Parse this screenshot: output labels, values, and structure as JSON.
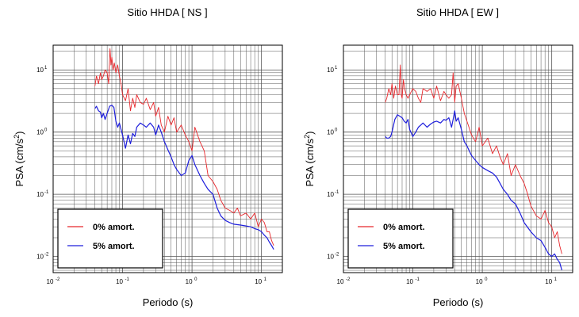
{
  "colors": {
    "undamped": "#e8262b",
    "damped": "#1e1edc",
    "grid": "#555555",
    "frame": "#000000"
  },
  "chart_data": [
    {
      "type": "line",
      "title": "Sitio HHDA [ NS ]",
      "xlabel": "Periodo (s)",
      "ylabel": "PSA (cm/s²)",
      "x_scale": "log",
      "y_scale": "log",
      "xlim": [
        0.01,
        20
      ],
      "ylim": [
        0.0055,
        25
      ],
      "x_ticks": [
        {
          "v": 0.01,
          "exp": "-2"
        },
        {
          "v": 0.1,
          "exp": "-1"
        },
        {
          "v": 1,
          "exp": "0"
        },
        {
          "v": 10,
          "exp": "1"
        }
      ],
      "y_ticks": [
        {
          "v": 0.01,
          "exp": "-2"
        },
        {
          "v": 0.1,
          "exp": "-1"
        },
        {
          "v": 1,
          "exp": "0"
        },
        {
          "v": 10,
          "exp": "1"
        }
      ],
      "grid": true,
      "legend_position": "bottom-left",
      "series": [
        {
          "name": "0% amort.",
          "color": "#e8262b",
          "x": [
            0.04,
            0.042,
            0.045,
            0.048,
            0.05,
            0.053,
            0.056,
            0.06,
            0.063,
            0.066,
            0.068,
            0.07,
            0.073,
            0.076,
            0.08,
            0.085,
            0.09,
            0.095,
            0.1,
            0.11,
            0.12,
            0.13,
            0.14,
            0.15,
            0.16,
            0.18,
            0.2,
            0.22,
            0.25,
            0.28,
            0.3,
            0.33,
            0.36,
            0.4,
            0.45,
            0.5,
            0.55,
            0.6,
            0.7,
            0.8,
            0.9,
            1.0,
            1.1,
            1.3,
            1.5,
            1.7,
            2.0,
            2.3,
            2.6,
            3.0,
            3.5,
            4.0,
            4.5,
            5.0,
            6.0,
            7.0,
            8.0,
            9.0,
            10.0,
            11.0,
            12.0,
            13.0,
            14.0,
            15.0
          ],
          "y": [
            5.5,
            8,
            6,
            9,
            7,
            8,
            10,
            9,
            6,
            22,
            12,
            16,
            10,
            13,
            9,
            12,
            8,
            6,
            4,
            3.2,
            5,
            2.2,
            3.5,
            2.5,
            4,
            3,
            2.8,
            3.5,
            2.3,
            3.0,
            1.8,
            2.5,
            1.3,
            1.0,
            1.8,
            1.3,
            1.7,
            1.0,
            1.3,
            0.9,
            0.7,
            0.5,
            1.2,
            0.7,
            0.5,
            0.2,
            0.16,
            0.12,
            0.08,
            0.06,
            0.055,
            0.05,
            0.06,
            0.045,
            0.05,
            0.04,
            0.05,
            0.03,
            0.04,
            0.035,
            0.025,
            0.025,
            0.018,
            0.015
          ]
        },
        {
          "name": "5% amort.",
          "color": "#1e1edc",
          "x": [
            0.04,
            0.042,
            0.045,
            0.048,
            0.05,
            0.053,
            0.056,
            0.06,
            0.065,
            0.07,
            0.075,
            0.08,
            0.085,
            0.09,
            0.1,
            0.11,
            0.12,
            0.13,
            0.14,
            0.15,
            0.16,
            0.18,
            0.2,
            0.22,
            0.25,
            0.28,
            0.3,
            0.33,
            0.36,
            0.4,
            0.45,
            0.5,
            0.55,
            0.6,
            0.7,
            0.8,
            0.9,
            1.0,
            1.1,
            1.3,
            1.5,
            1.7,
            2.0,
            2.3,
            2.6,
            3.0,
            3.5,
            4.0,
            5.0,
            6.0,
            7.0,
            8.0,
            9.0,
            10.0,
            11.0,
            12.0,
            13.0,
            14.0,
            15.0
          ],
          "y": [
            2.4,
            2.6,
            2.2,
            2.1,
            1.7,
            2.0,
            1.6,
            2.0,
            2.6,
            2.7,
            2.5,
            1.5,
            1.2,
            1.4,
            0.9,
            0.55,
            0.9,
            0.65,
            0.95,
            0.85,
            1.2,
            1.4,
            1.3,
            1.2,
            1.4,
            1.2,
            0.9,
            1.3,
            1.0,
            0.7,
            0.52,
            0.4,
            0.3,
            0.25,
            0.2,
            0.22,
            0.35,
            0.42,
            0.3,
            0.2,
            0.15,
            0.12,
            0.1,
            0.06,
            0.045,
            0.038,
            0.035,
            0.033,
            0.032,
            0.031,
            0.03,
            0.028,
            0.027,
            0.025,
            0.022,
            0.02,
            0.017,
            0.015,
            0.013
          ]
        }
      ]
    },
    {
      "type": "line",
      "title": "Sitio HHDA [ EW ]",
      "xlabel": "Periodo (s)",
      "ylabel": "PSA (cm/s²)",
      "x_scale": "log",
      "y_scale": "log",
      "xlim": [
        0.01,
        20
      ],
      "ylim": [
        0.0055,
        25
      ],
      "x_ticks": [
        {
          "v": 0.01,
          "exp": "-2"
        },
        {
          "v": 0.1,
          "exp": "-1"
        },
        {
          "v": 1,
          "exp": "0"
        },
        {
          "v": 10,
          "exp": "1"
        }
      ],
      "y_ticks": [
        {
          "v": 0.01,
          "exp": "-2"
        },
        {
          "v": 0.1,
          "exp": "-1"
        },
        {
          "v": 1,
          "exp": "0"
        },
        {
          "v": 10,
          "exp": "1"
        }
      ],
      "grid": true,
      "legend_position": "bottom-left",
      "series": [
        {
          "name": "0% amort.",
          "color": "#e8262b",
          "x": [
            0.04,
            0.042,
            0.045,
            0.048,
            0.05,
            0.053,
            0.056,
            0.06,
            0.063,
            0.066,
            0.068,
            0.07,
            0.073,
            0.076,
            0.08,
            0.085,
            0.09,
            0.1,
            0.11,
            0.12,
            0.13,
            0.14,
            0.16,
            0.18,
            0.2,
            0.22,
            0.25,
            0.28,
            0.3,
            0.33,
            0.36,
            0.38,
            0.4,
            0.42,
            0.45,
            0.5,
            0.55,
            0.6,
            0.7,
            0.8,
            0.9,
            1.0,
            1.2,
            1.4,
            1.6,
            1.8,
            2.0,
            2.3,
            2.6,
            3.0,
            3.5,
            4.0,
            4.5,
            5.0,
            6.0,
            7.0,
            8.0,
            9.0,
            10.0,
            11.0,
            12.0,
            13.0,
            14.0
          ],
          "y": [
            3,
            3.5,
            5,
            4,
            6,
            3.5,
            5.5,
            4,
            4,
            12,
            4,
            3.5,
            7,
            5,
            4,
            3.5,
            4,
            5,
            4.5,
            3.5,
            3,
            5,
            4.5,
            5,
            3.5,
            5.5,
            3.2,
            4.5,
            4,
            3.5,
            4,
            9,
            3,
            5.5,
            6,
            3.5,
            2.0,
            1.5,
            0.9,
            0.7,
            1.2,
            0.6,
            0.8,
            0.45,
            0.6,
            0.4,
            0.3,
            0.45,
            0.2,
            0.3,
            0.2,
            0.15,
            0.1,
            0.065,
            0.045,
            0.04,
            0.055,
            0.035,
            0.03,
            0.02,
            0.025,
            0.015,
            0.011
          ]
        },
        {
          "name": "5% amort.",
          "color": "#1e1edc",
          "x": [
            0.04,
            0.042,
            0.045,
            0.048,
            0.05,
            0.055,
            0.06,
            0.065,
            0.07,
            0.075,
            0.08,
            0.085,
            0.09,
            0.1,
            0.11,
            0.12,
            0.13,
            0.14,
            0.16,
            0.18,
            0.2,
            0.22,
            0.25,
            0.28,
            0.3,
            0.33,
            0.36,
            0.38,
            0.4,
            0.42,
            0.45,
            0.5,
            0.55,
            0.6,
            0.7,
            0.8,
            0.9,
            1.0,
            1.2,
            1.4,
            1.6,
            1.8,
            2.0,
            2.3,
            2.6,
            3.0,
            3.5,
            4.0,
            5.0,
            6.0,
            7.0,
            8.0,
            9.0,
            10.0,
            11.0,
            12.0,
            13.0,
            14.0
          ],
          "y": [
            0.85,
            0.8,
            0.8,
            0.85,
            1.0,
            1.6,
            1.9,
            1.8,
            1.7,
            1.5,
            1.4,
            1.6,
            1.1,
            0.85,
            1.0,
            1.2,
            1.3,
            1.4,
            1.2,
            1.35,
            1.45,
            1.5,
            1.4,
            1.6,
            1.55,
            1.7,
            1.2,
            1.6,
            2.2,
            1.5,
            1.7,
            1.1,
            0.7,
            0.6,
            0.42,
            0.35,
            0.3,
            0.27,
            0.24,
            0.22,
            0.19,
            0.15,
            0.12,
            0.1,
            0.08,
            0.07,
            0.05,
            0.035,
            0.025,
            0.02,
            0.018,
            0.014,
            0.011,
            0.01,
            0.011,
            0.009,
            0.008,
            0.006
          ]
        }
      ]
    }
  ]
}
